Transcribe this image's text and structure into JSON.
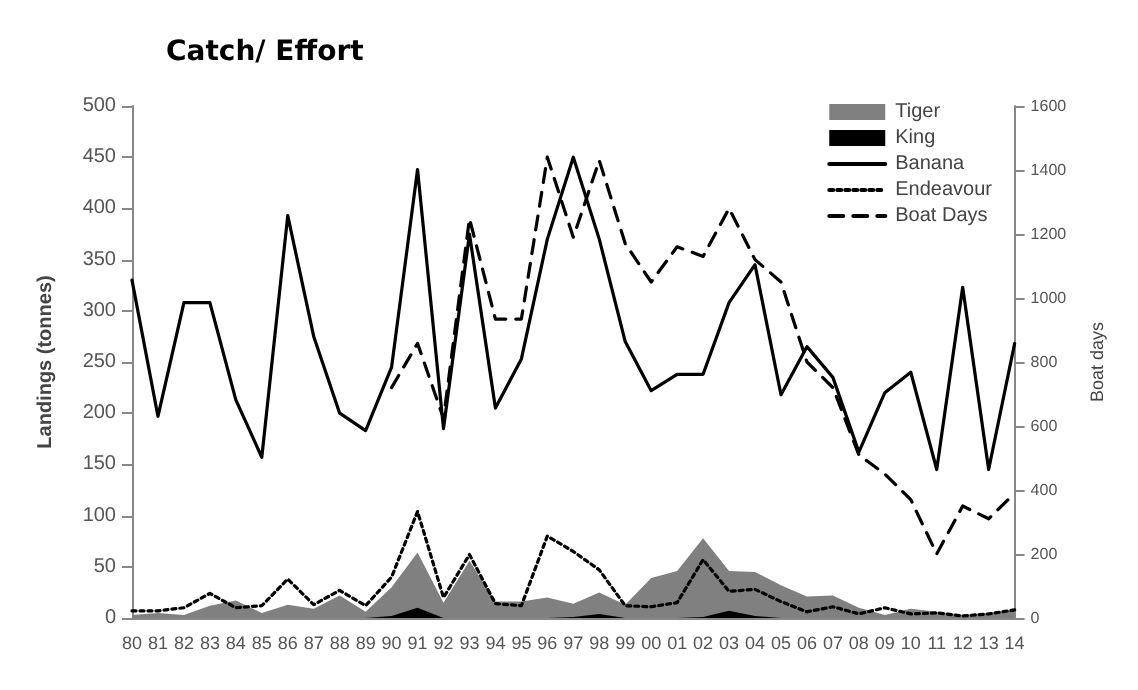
{
  "chart_data": {
    "type": "line",
    "title": "Catch/ Effort",
    "ylabel": "Landings (tonnes)",
    "y2label": "Boat days",
    "categories": [
      "80",
      "81",
      "82",
      "83",
      "84",
      "85",
      "86",
      "87",
      "88",
      "89",
      "90",
      "91",
      "92",
      "93",
      "94",
      "95",
      "96",
      "97",
      "98",
      "99",
      "00",
      "01",
      "02",
      "03",
      "04",
      "05",
      "06",
      "07",
      "08",
      "09",
      "10",
      "11",
      "12",
      "13",
      "14"
    ],
    "series": [
      {
        "name": "Tiger",
        "type": "area",
        "color": "#808080",
        "values": [
          3,
          5,
          3,
          12,
          17,
          5,
          13,
          9,
          22,
          6,
          30,
          64,
          15,
          56,
          16,
          16,
          20,
          14,
          25,
          13,
          39,
          46,
          78,
          46,
          45,
          32,
          21,
          22,
          10,
          3,
          9,
          6,
          3,
          5,
          8
        ]
      },
      {
        "name": "King",
        "type": "area",
        "color": "#000000",
        "values": [
          0,
          0,
          0,
          0,
          0,
          0,
          0,
          0,
          0,
          0,
          2,
          10,
          0,
          0,
          0,
          0,
          0,
          1,
          4,
          0,
          0,
          0,
          1,
          7,
          2,
          0,
          0,
          0,
          0,
          0,
          0,
          0,
          0,
          0,
          0
        ]
      },
      {
        "name": "Banana",
        "type": "line",
        "color": "#000000",
        "line_style": "solid",
        "values": [
          330,
          197,
          308,
          308,
          213,
          157,
          393,
          275,
          200,
          183,
          245,
          438,
          185,
          375,
          205,
          253,
          370,
          450,
          370,
          270,
          222,
          238,
          238,
          308,
          345,
          218,
          265,
          235,
          162,
          220,
          240,
          145,
          323,
          145,
          268
        ]
      },
      {
        "name": "Endeavour",
        "type": "line",
        "color": "#000000",
        "line_style": "dotted",
        "values": [
          7,
          7,
          10,
          24,
          10,
          12,
          38,
          13,
          27,
          12,
          40,
          104,
          20,
          62,
          14,
          12,
          80,
          65,
          47,
          12,
          11,
          15,
          57,
          26,
          28,
          16,
          6,
          11,
          4,
          10,
          4,
          5,
          2,
          4,
          8
        ]
      },
      {
        "name": "Boat Days",
        "type": "line",
        "axis": "y2",
        "color": "#000000",
        "line_style": "dashed",
        "values": [
          null,
          null,
          null,
          null,
          null,
          null,
          null,
          null,
          null,
          null,
          720,
          858,
          624,
          1248,
          934,
          934,
          1440,
          1190,
          1430,
          1170,
          1050,
          1160,
          1130,
          1280,
          1120,
          1050,
          800,
          720,
          510,
          450,
          370,
          200,
          350,
          310,
          390
        ]
      }
    ],
    "ylim": [
      0,
      500
    ],
    "yticks": [
      0,
      50,
      100,
      150,
      200,
      250,
      300,
      350,
      400,
      450,
      500
    ],
    "y2lim": [
      0,
      1600
    ],
    "y2ticks": [
      0,
      200,
      400,
      600,
      800,
      1000,
      1200,
      1400,
      1600
    ],
    "legend": "top right",
    "grid": false,
    "marker": "none"
  }
}
